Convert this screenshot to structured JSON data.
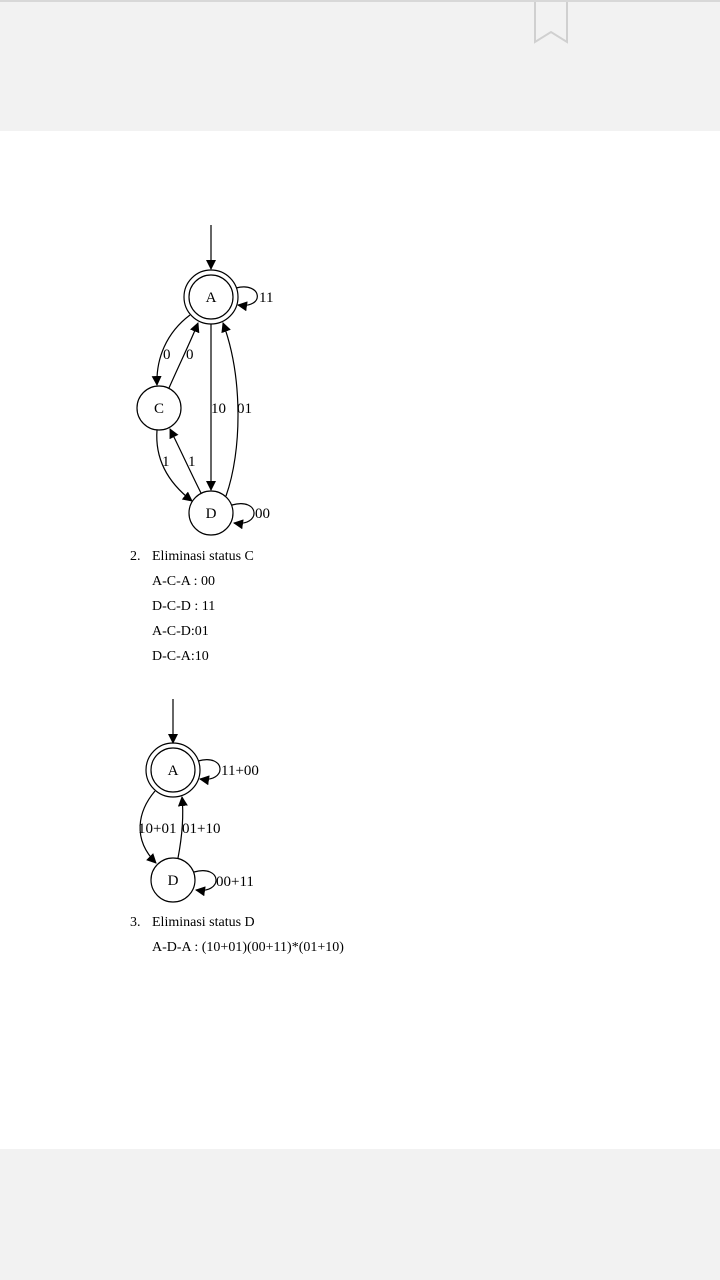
{
  "graph1": {
    "nodes": {
      "A": "A",
      "C": "C",
      "D": "D"
    },
    "edges": {
      "a_self": "11",
      "a_to_c": "0",
      "c_to_a": "0",
      "a_to_d": "10",
      "d_to_a": "01",
      "c_to_d": "1",
      "d_to_c": "1",
      "d_self": "00"
    }
  },
  "section2": {
    "number": "2.",
    "title": "Eliminasi status C",
    "lines": [
      "A-C-A : 00",
      "D-C-D : 11",
      "A-C-D:01",
      "D-C-A:10"
    ]
  },
  "graph2": {
    "nodes": {
      "A": "A",
      "D": "D"
    },
    "edges": {
      "a_self": "11+00",
      "a_to_d": "10+01",
      "d_to_a": "01+10",
      "d_self": "00+11"
    }
  },
  "section3": {
    "number": "3.",
    "title": "Eliminasi status D",
    "lines": [
      "A-D-A : (10+01)(00+11)*(01+10)"
    ]
  }
}
